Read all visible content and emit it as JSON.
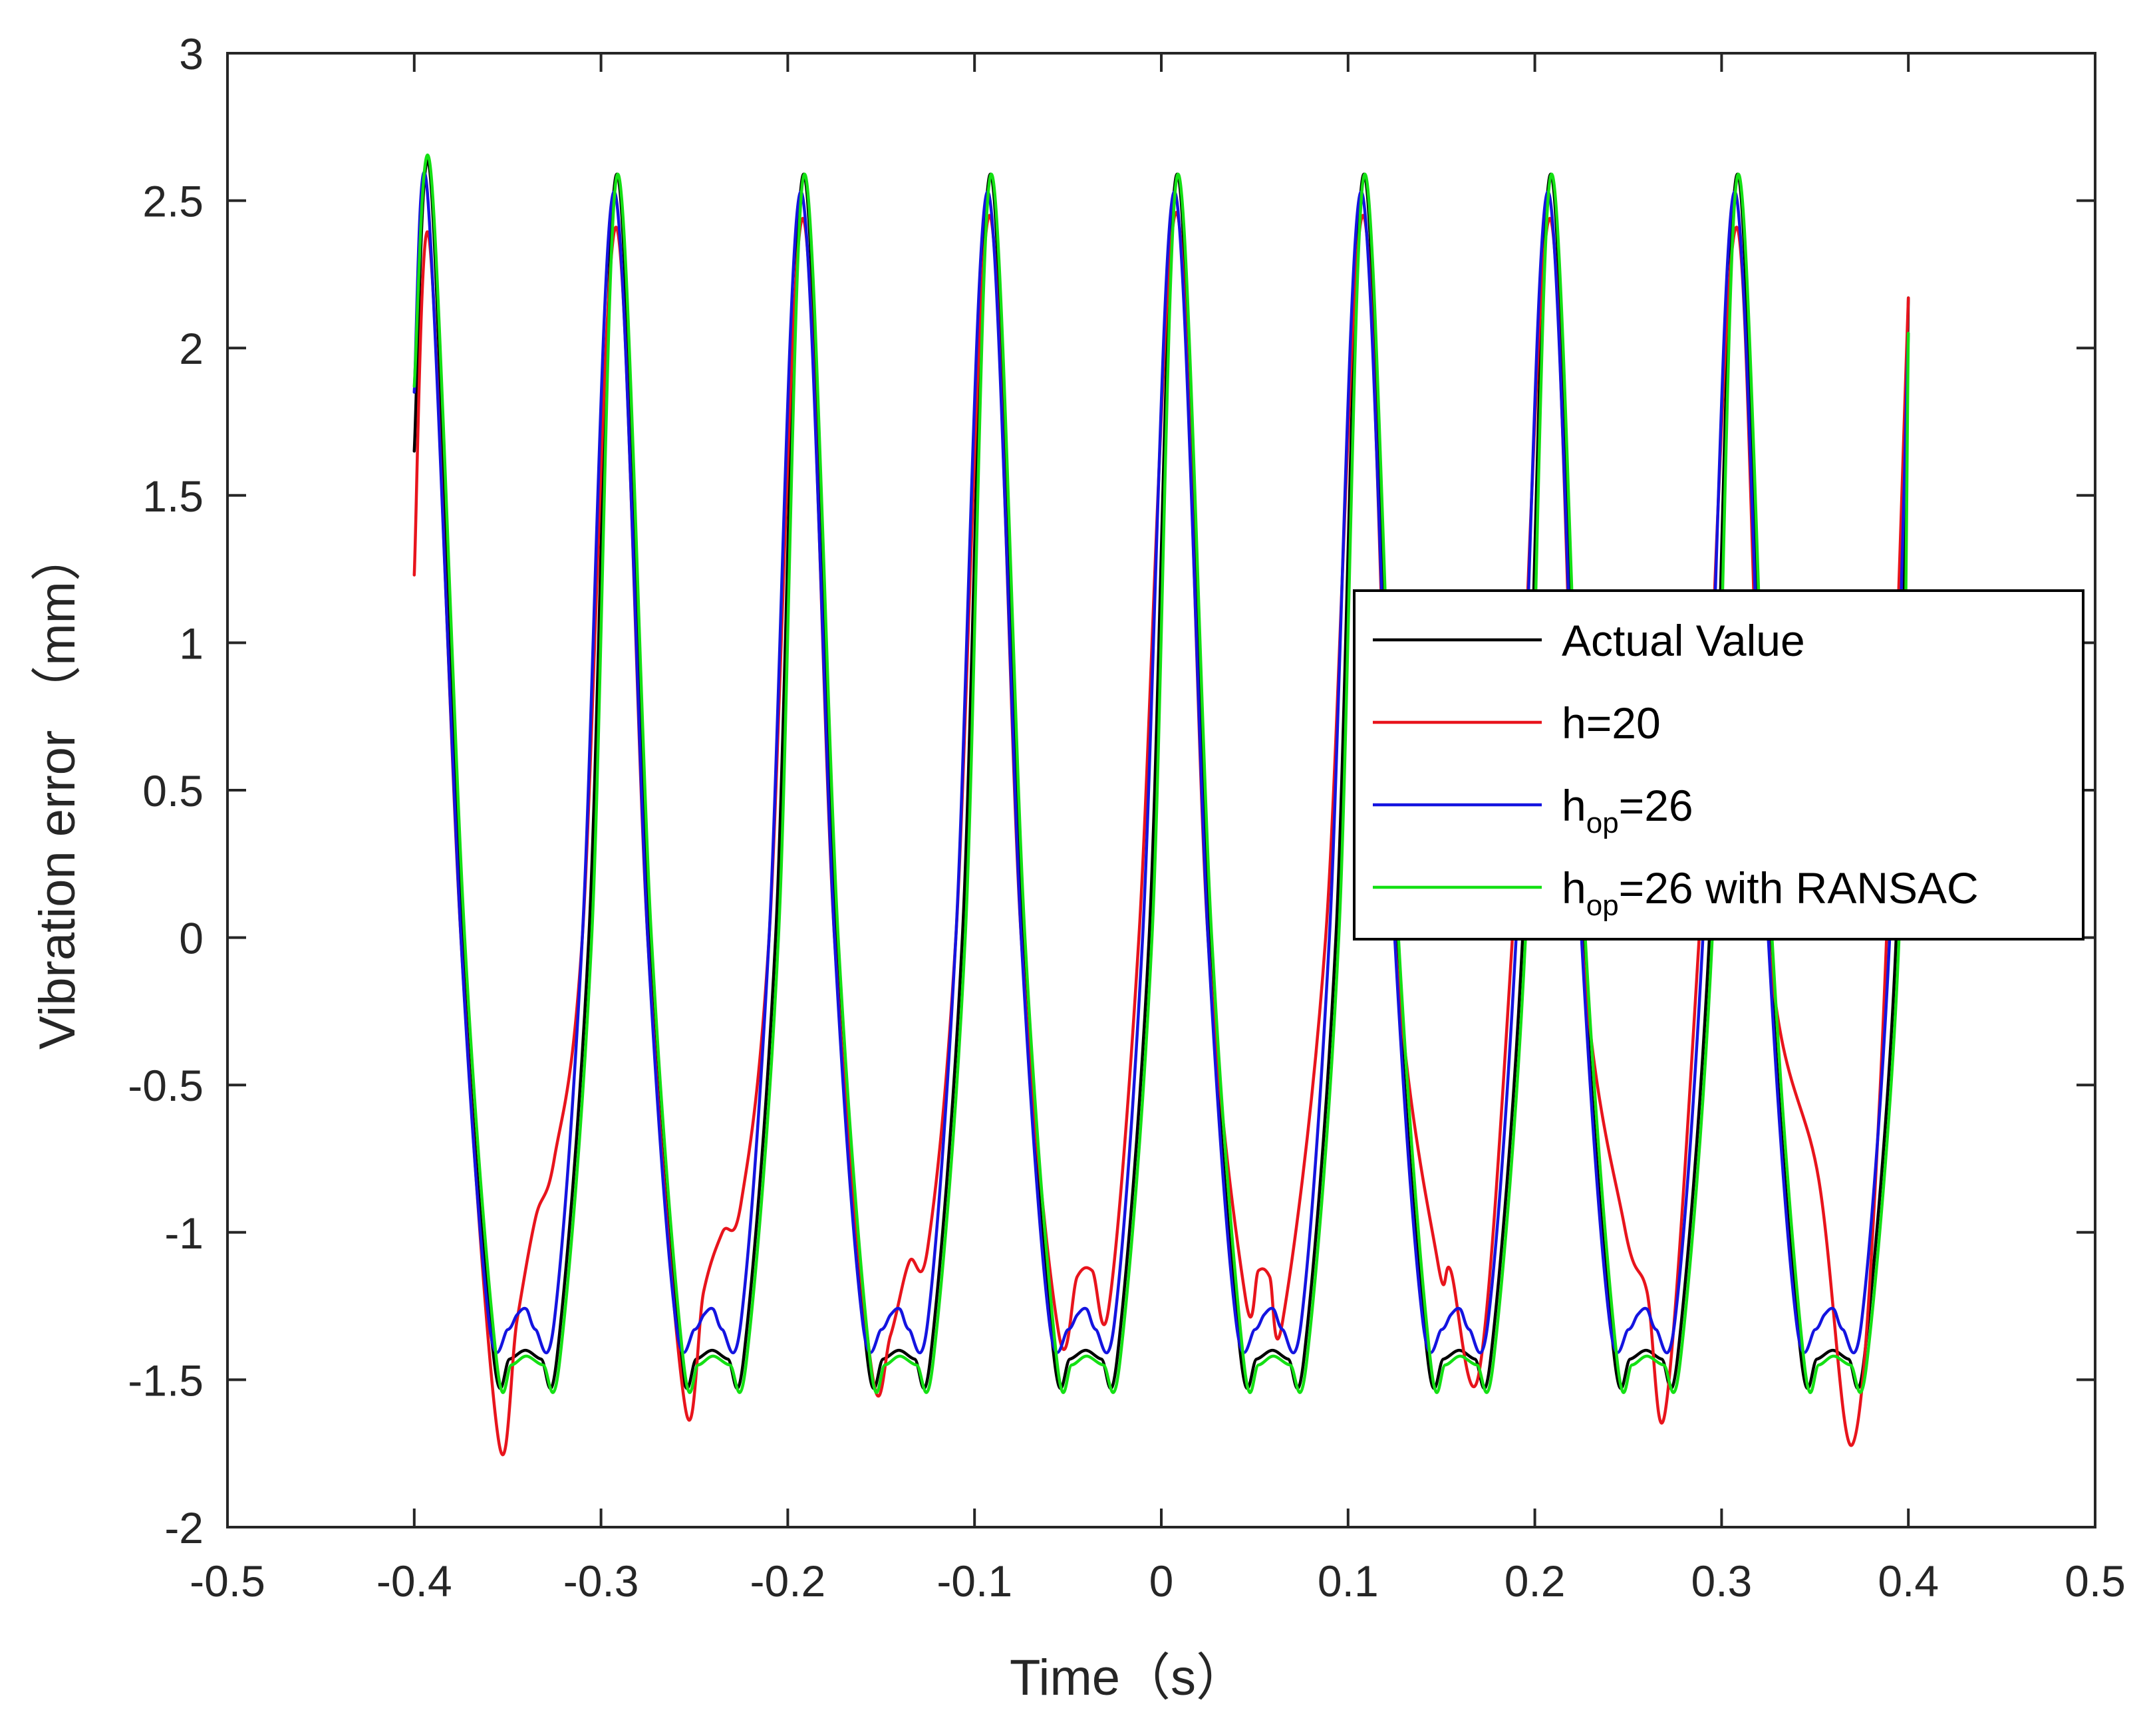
{
  "chart_data": {
    "type": "line",
    "title": "",
    "xlabel": "Time（s）",
    "ylabel": "Vibration error （mm）",
    "xlim": [
      -0.5,
      0.5
    ],
    "ylim": [
      -2,
      3
    ],
    "xticks": [
      -0.5,
      -0.4,
      -0.3,
      -0.2,
      -0.1,
      0,
      0.1,
      0.2,
      0.3,
      0.4,
      0.5
    ],
    "xtick_labels": [
      "-0.5",
      "-0.4",
      "-0.3",
      "-0.2",
      "-0.1",
      "0",
      "0.1",
      "0.2",
      "0.3",
      "0.4",
      "0.5"
    ],
    "yticks": [
      -2,
      -1.5,
      -1,
      -0.5,
      0,
      0.5,
      1,
      1.5,
      2,
      2.5,
      3
    ],
    "ytick_labels": [
      "-2",
      "-1.5",
      "-1",
      "-0.5",
      "0",
      "0.5",
      "1",
      "1.5",
      "2",
      "2.5",
      "3"
    ],
    "grid": false,
    "legend_position": "right",
    "series": [
      {
        "name": "Actual Value",
        "legend": {
          "main": "Actual Value"
        },
        "color": "#000000",
        "x": [
          -0.4,
          -0.3915,
          -0.3745,
          -0.3575,
          -0.349,
          -0.3405,
          -0.332,
          -0.3235,
          -0.3065,
          -0.2915,
          -0.2745,
          -0.2575,
          -0.249,
          -0.2405,
          -0.232,
          -0.2235,
          -0.2065,
          -0.1915,
          -0.1745,
          -0.1575,
          -0.149,
          -0.1405,
          -0.132,
          -0.1235,
          -0.1065,
          -0.0915,
          -0.0745,
          -0.0575,
          -0.049,
          -0.0405,
          -0.032,
          -0.0235,
          -0.0065,
          0.0085,
          0.0255,
          0.0425,
          0.051,
          0.0595,
          0.068,
          0.0765,
          0.0935,
          0.1085,
          0.1255,
          0.1425,
          0.151,
          0.1595,
          0.168,
          0.1765,
          0.1935,
          0.2085,
          0.2255,
          0.2425,
          0.251,
          0.2595,
          0.268,
          0.2765,
          0.2935,
          0.3085,
          0.3255,
          0.3425,
          0.351,
          0.3595,
          0.368,
          0.3765,
          0.3935,
          0.4
        ],
        "y": [
          1.65,
          2.59,
          0.0,
          -1.42,
          -1.43,
          -1.4,
          -1.43,
          -1.42,
          0.0,
          2.59,
          0.0,
          -1.42,
          -1.43,
          -1.4,
          -1.43,
          -1.42,
          0.0,
          2.59,
          0.0,
          -1.42,
          -1.43,
          -1.4,
          -1.43,
          -1.42,
          0.0,
          2.59,
          0.0,
          -1.42,
          -1.43,
          -1.4,
          -1.43,
          -1.42,
          0.0,
          2.59,
          0.0,
          -1.42,
          -1.43,
          -1.4,
          -1.43,
          -1.42,
          0.0,
          2.59,
          0.0,
          -1.42,
          -1.43,
          -1.4,
          -1.43,
          -1.42,
          0.0,
          2.59,
          0.0,
          -1.42,
          -1.43,
          -1.4,
          -1.43,
          -1.42,
          0.0,
          2.59,
          0.0,
          -1.42,
          -1.43,
          -1.4,
          -1.43,
          -1.42,
          0.0,
          2.17
        ]
      },
      {
        "name": "h=20",
        "legend": {
          "main": "h=20"
        },
        "color": "#e8141c",
        "x": [
          -0.4,
          -0.392,
          -0.375,
          -0.355,
          -0.345,
          -0.335,
          -0.325,
          -0.31,
          -0.292,
          -0.275,
          -0.255,
          -0.245,
          -0.235,
          -0.225,
          -0.21,
          -0.192,
          -0.175,
          -0.155,
          -0.145,
          -0.135,
          -0.125,
          -0.11,
          -0.092,
          -0.075,
          -0.055,
          -0.045,
          -0.037,
          -0.028,
          -0.012,
          0.008,
          0.025,
          0.045,
          0.052,
          0.058,
          0.065,
          0.088,
          0.108,
          0.125,
          0.148,
          0.155,
          0.17,
          0.188,
          0.208,
          0.225,
          0.248,
          0.26,
          0.27,
          0.288,
          0.308,
          0.325,
          0.352,
          0.37,
          0.385,
          0.4
        ],
        "y": [
          1.23,
          2.37,
          0.0,
          -1.7,
          -1.3,
          -0.95,
          -0.75,
          0.0,
          2.41,
          0.0,
          -1.59,
          -1.2,
          -1.0,
          -0.9,
          0.0,
          2.44,
          0.0,
          -1.47,
          -1.35,
          -1.1,
          -1.05,
          0.0,
          2.45,
          0.0,
          -1.34,
          -1.15,
          -1.13,
          -1.25,
          0.0,
          2.46,
          0.0,
          -1.22,
          -1.13,
          -1.15,
          -1.3,
          0.0,
          2.45,
          0.0,
          -1.1,
          -1.13,
          -1.48,
          0.0,
          2.44,
          0.0,
          -0.98,
          -1.2,
          -1.6,
          0.0,
          2.41,
          0.0,
          -0.82,
          -1.72,
          -0.5,
          2.17
        ]
      },
      {
        "name": "hop=26",
        "legend": {
          "main": "h",
          "sub": "op",
          "rest": "=26"
        },
        "color": "#1414e0",
        "x": [
          -0.4,
          -0.393,
          -0.375,
          -0.36,
          -0.35,
          -0.345,
          -0.34,
          -0.335,
          -0.325,
          -0.31,
          -0.293,
          -0.275,
          -0.26,
          -0.25,
          -0.245,
          -0.24,
          -0.235,
          -0.225,
          -0.21,
          -0.193,
          -0.175,
          -0.16,
          -0.15,
          -0.145,
          -0.14,
          -0.135,
          -0.125,
          -0.11,
          -0.093,
          -0.075,
          -0.06,
          -0.05,
          -0.045,
          -0.04,
          -0.035,
          -0.025,
          -0.01,
          0.007,
          0.025,
          0.04,
          0.05,
          0.055,
          0.06,
          0.065,
          0.075,
          0.09,
          0.107,
          0.125,
          0.14,
          0.15,
          0.155,
          0.16,
          0.165,
          0.175,
          0.19,
          0.207,
          0.225,
          0.24,
          0.25,
          0.255,
          0.26,
          0.265,
          0.275,
          0.29,
          0.307,
          0.325,
          0.34,
          0.35,
          0.355,
          0.36,
          0.365,
          0.375,
          0.39,
          0.4
        ],
        "y": [
          1.85,
          2.53,
          0.0,
          -1.3,
          -1.33,
          -1.28,
          -1.26,
          -1.33,
          -1.3,
          0.0,
          2.53,
          0.0,
          -1.3,
          -1.33,
          -1.28,
          -1.26,
          -1.33,
          -1.3,
          0.0,
          2.53,
          0.0,
          -1.3,
          -1.33,
          -1.28,
          -1.26,
          -1.33,
          -1.3,
          0.0,
          2.53,
          0.0,
          -1.3,
          -1.33,
          -1.28,
          -1.26,
          -1.33,
          -1.3,
          0.0,
          2.53,
          0.0,
          -1.3,
          -1.33,
          -1.28,
          -1.26,
          -1.33,
          -1.3,
          0.0,
          2.53,
          0.0,
          -1.3,
          -1.33,
          -1.28,
          -1.26,
          -1.33,
          -1.3,
          0.0,
          2.53,
          0.0,
          -1.3,
          -1.33,
          -1.28,
          -1.26,
          -1.33,
          -1.3,
          0.0,
          2.53,
          0.0,
          -1.3,
          -1.33,
          -1.28,
          -1.26,
          -1.33,
          -1.3,
          0.0,
          2.05
        ]
      },
      {
        "name": "hop=26 with RANSAC",
        "legend": {
          "main": "h",
          "sub": "op",
          "rest": "=26 with RANSAC"
        },
        "color": "#14e014",
        "x": [
          -0.4,
          -0.391,
          -0.373,
          -0.356,
          -0.348,
          -0.34,
          -0.331,
          -0.322,
          -0.305,
          -0.291,
          -0.273,
          -0.256,
          -0.248,
          -0.24,
          -0.231,
          -0.222,
          -0.205,
          -0.191,
          -0.173,
          -0.156,
          -0.148,
          -0.14,
          -0.131,
          -0.122,
          -0.105,
          -0.091,
          -0.073,
          -0.056,
          -0.048,
          -0.04,
          -0.031,
          -0.022,
          -0.005,
          0.009,
          0.027,
          0.044,
          0.052,
          0.06,
          0.069,
          0.078,
          0.095,
          0.109,
          0.127,
          0.144,
          0.152,
          0.16,
          0.169,
          0.178,
          0.195,
          0.209,
          0.227,
          0.244,
          0.252,
          0.26,
          0.269,
          0.278,
          0.295,
          0.309,
          0.327,
          0.344,
          0.352,
          0.36,
          0.369,
          0.378,
          0.395,
          0.4
        ],
        "y": [
          1.87,
          2.59,
          0.0,
          -1.43,
          -1.45,
          -1.42,
          -1.45,
          -1.43,
          0.0,
          2.59,
          0.0,
          -1.43,
          -1.45,
          -1.42,
          -1.45,
          -1.43,
          0.0,
          2.59,
          0.0,
          -1.43,
          -1.45,
          -1.42,
          -1.45,
          -1.43,
          0.0,
          2.59,
          0.0,
          -1.43,
          -1.45,
          -1.42,
          -1.45,
          -1.43,
          0.0,
          2.59,
          0.0,
          -1.43,
          -1.45,
          -1.42,
          -1.45,
          -1.43,
          0.0,
          2.59,
          0.0,
          -1.43,
          -1.45,
          -1.42,
          -1.45,
          -1.43,
          0.0,
          2.59,
          0.0,
          -1.43,
          -1.45,
          -1.42,
          -1.45,
          -1.43,
          0.0,
          2.59,
          0.0,
          -1.43,
          -1.45,
          -1.42,
          -1.45,
          -1.43,
          0.0,
          2.05
        ]
      }
    ]
  }
}
